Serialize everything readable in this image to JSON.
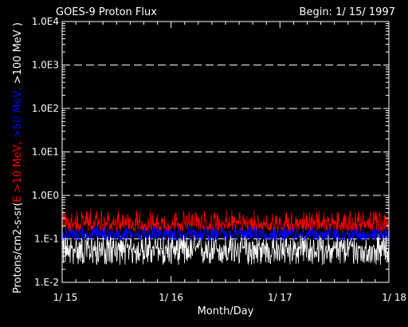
{
  "chart_data": {
    "type": "line",
    "title": "GOES-9 Proton Flux",
    "subtitle": "Begin: 1/ 15/ 1997",
    "xlabel": "Month/Day",
    "ylabel_parts": [
      {
        "text": "Protons/cm2-s-sr(",
        "color": "#ffffff"
      },
      {
        "text": "E >10 MeV,",
        "color": "#ff0000"
      },
      {
        "text": " >50 MeV,",
        "color": "#0000ff"
      },
      {
        "text": " >100 MeV )",
        "color": "#ffffff"
      }
    ],
    "y_scale": "log",
    "ylim": [
      0.01,
      10000
    ],
    "y_ticks": [
      "1.E-2",
      "1.E-1",
      "1.0E0",
      "1.0E1",
      "1.0E2",
      "1.0E3",
      "1.0E4"
    ],
    "xlim": [
      "1997-01-15",
      "1997-01-18"
    ],
    "x_ticks": [
      "1/ 15",
      "1/ 16",
      "1/ 17",
      "1/ 18"
    ],
    "grid": "dashed horizontal at decades",
    "series": [
      {
        "name": "E >10 MeV",
        "color": "#ff0000",
        "typical": 0.22,
        "low": 0.15,
        "high": 0.45
      },
      {
        "name": ">50 MeV",
        "color": "#0000ff",
        "typical": 0.13,
        "low": 0.09,
        "high": 0.2
      },
      {
        "name": ">100 MeV",
        "color": "#ffffff",
        "typical": 0.06,
        "low": 0.025,
        "high": 0.13
      }
    ]
  }
}
